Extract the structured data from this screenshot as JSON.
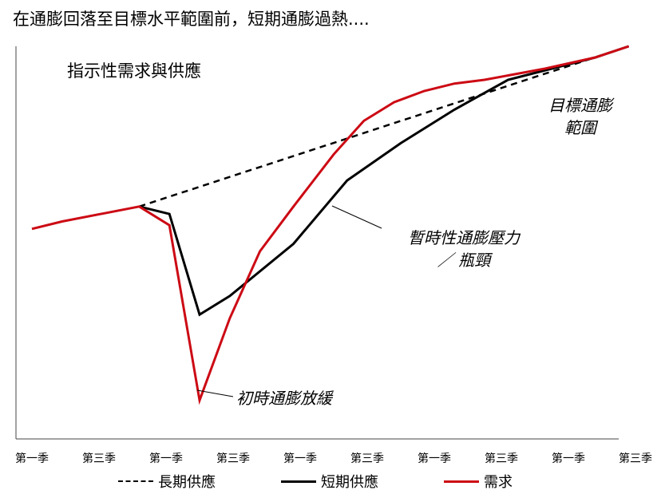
{
  "headline": "在通膨回落至目標水平範圍前，短期通膨過熱....",
  "subtitle": "指示性需求與供應",
  "annotations": {
    "target_range": [
      "目標通膨",
      "範圍"
    ],
    "temporary_pressure": [
      "暫時性通膨壓力",
      "／ 瓶頸"
    ],
    "initial_easing": "初時通膨放緩"
  },
  "chart_data": {
    "type": "line",
    "title": "",
    "xlabel": "",
    "ylabel": "",
    "categories": [
      "第一季",
      "第三季",
      "第一季",
      "第三季",
      "第一季",
      "第三季",
      "第一季",
      "第三季",
      "第一季",
      "第三季"
    ],
    "ylim": [
      0,
      100
    ],
    "grid": false,
    "legend_position": "bottom",
    "series": [
      {
        "name": "長期供應",
        "color": "#000000",
        "dash": true,
        "x": [
          1.6,
          8.9
        ],
        "y": [
          57,
          100
        ]
      },
      {
        "name": "短期供應",
        "color": "#000000",
        "dash": false,
        "x": [
          1.6,
          2.05,
          2.5,
          2.95,
          3.9,
          4.7,
          5.5,
          6.3,
          7.1,
          8.4,
          8.9
        ],
        "y": [
          57,
          55,
          28,
          33,
          47,
          64,
          74,
          83,
          91,
          97,
          100
        ]
      },
      {
        "name": "需求",
        "color": "#cc0a14",
        "dash": false,
        "x": [
          0,
          0.45,
          1.6,
          2.05,
          2.5,
          2.95,
          3.4,
          3.9,
          4.5,
          4.95,
          5.4,
          5.85,
          6.3,
          6.75,
          7.2,
          7.65,
          8.4,
          8.9
        ],
        "y": [
          51,
          53,
          57,
          52,
          5,
          27,
          45,
          57,
          71,
          80,
          85,
          88,
          90,
          91,
          92.5,
          94,
          97,
          100
        ]
      }
    ]
  }
}
